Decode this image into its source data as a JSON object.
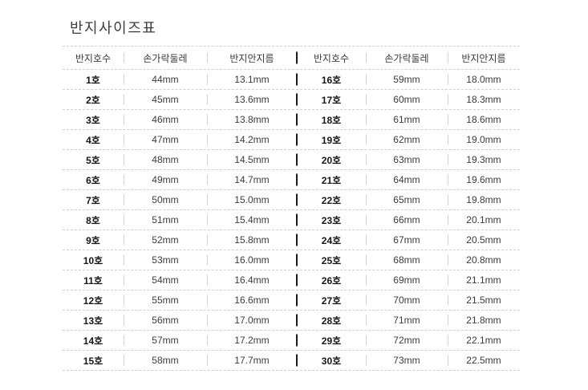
{
  "page": {
    "title": "반지사이즈표",
    "background_color": "#ffffff"
  },
  "style_colors": {
    "row_line": "#cfcfcf",
    "column_separator": "#d2d2d2",
    "table_divider": "#1b1b1b",
    "text_regular": "#3c3c3c",
    "text_bold": "#161616"
  },
  "table": {
    "left": {
      "headers": {
        "size": "반지호수",
        "circumference": "손가락둘레",
        "diameter": "반지안지름"
      },
      "rows": [
        {
          "size": "1호",
          "circumference": "44mm",
          "diameter": "13.1mm"
        },
        {
          "size": "2호",
          "circumference": "45mm",
          "diameter": "13.6mm"
        },
        {
          "size": "3호",
          "circumference": "46mm",
          "diameter": "13.8mm"
        },
        {
          "size": "4호",
          "circumference": "47mm",
          "diameter": "14.2mm"
        },
        {
          "size": "5호",
          "circumference": "48mm",
          "diameter": "14.5mm"
        },
        {
          "size": "6호",
          "circumference": "49mm",
          "diameter": "14.7mm"
        },
        {
          "size": "7호",
          "circumference": "50mm",
          "diameter": "15.0mm"
        },
        {
          "size": "8호",
          "circumference": "51mm",
          "diameter": "15.4mm"
        },
        {
          "size": "9호",
          "circumference": "52mm",
          "diameter": "15.8mm"
        },
        {
          "size": "10호",
          "circumference": "53mm",
          "diameter": "16.0mm"
        },
        {
          "size": "11호",
          "circumference": "54mm",
          "diameter": "16.4mm"
        },
        {
          "size": "12호",
          "circumference": "55mm",
          "diameter": "16.6mm"
        },
        {
          "size": "13호",
          "circumference": "56mm",
          "diameter": "17.0mm"
        },
        {
          "size": "14호",
          "circumference": "57mm",
          "diameter": "17.2mm"
        },
        {
          "size": "15호",
          "circumference": "58mm",
          "diameter": "17.7mm"
        }
      ]
    },
    "right": {
      "headers": {
        "size": "반지호수",
        "circumference": "손가락둘레",
        "diameter": "반지안지름"
      },
      "rows": [
        {
          "size": "16호",
          "circumference": "59mm",
          "diameter": "18.0mm"
        },
        {
          "size": "17호",
          "circumference": "60mm",
          "diameter": "18.3mm"
        },
        {
          "size": "18호",
          "circumference": "61mm",
          "diameter": "18.6mm"
        },
        {
          "size": "19호",
          "circumference": "62mm",
          "diameter": "19.0mm"
        },
        {
          "size": "20호",
          "circumference": "63mm",
          "diameter": "19.3mm"
        },
        {
          "size": "21호",
          "circumference": "64mm",
          "diameter": "19.6mm"
        },
        {
          "size": "22호",
          "circumference": "65mm",
          "diameter": "19.8mm"
        },
        {
          "size": "23호",
          "circumference": "66mm",
          "diameter": "20.1mm"
        },
        {
          "size": "24호",
          "circumference": "67mm",
          "diameter": "20.5mm"
        },
        {
          "size": "25호",
          "circumference": "68mm",
          "diameter": "20.8mm"
        },
        {
          "size": "26호",
          "circumference": "69mm",
          "diameter": "21.1mm"
        },
        {
          "size": "27호",
          "circumference": "70mm",
          "diameter": "21.5mm"
        },
        {
          "size": "28호",
          "circumference": "71mm",
          "diameter": "21.8mm"
        },
        {
          "size": "29호",
          "circumference": "72mm",
          "diameter": "22.1mm"
        },
        {
          "size": "30호",
          "circumference": "73mm",
          "diameter": "22.5mm"
        }
      ]
    }
  }
}
